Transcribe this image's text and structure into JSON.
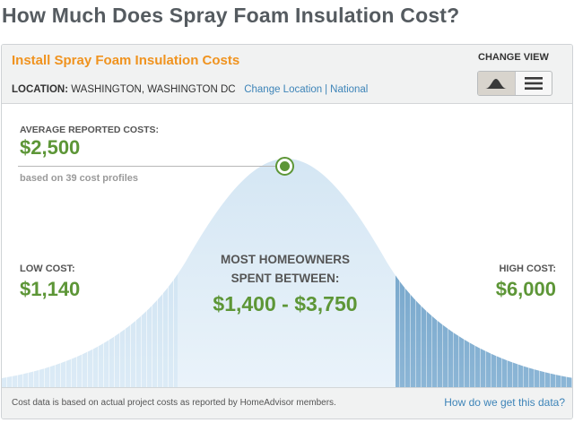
{
  "page": {
    "title": "How Much Does Spray Foam Insulation Cost?"
  },
  "card": {
    "title": "Install Spray Foam Insulation Costs",
    "location_key": "LOCATION:",
    "location_value": "WASHINGTON, WASHINGTON DC",
    "change_location": "Change Location",
    "separator": "|",
    "national": "National",
    "change_view": "CHANGE VIEW",
    "view_options": [
      "bell-curve-view-icon",
      "list-view-icon"
    ],
    "active_view": "bell-curve"
  },
  "costs": {
    "average_label": "AVERAGE REPORTED COSTS:",
    "average_value": "$2,500",
    "profiles_note": "based on 39 cost profiles",
    "low_label": "LOW COST:",
    "low_value": "$1,140",
    "high_label": "HIGH COST:",
    "high_value": "$6,000",
    "mid_line1": "MOST HOMEOWNERS",
    "mid_line2": "SPENT BETWEEN:",
    "mid_range": "$1,400 - $3,750"
  },
  "footer": {
    "note": "Cost data is based on actual project costs as reported by HomeAdvisor members.",
    "link": "How do we get this data?"
  },
  "colors": {
    "accent_orange": "#f0931f",
    "value_green": "#5d9637",
    "link_blue": "#3d84b8",
    "curve_light": "#d4e6f3",
    "curve_dark": "#6fa1c6"
  }
}
